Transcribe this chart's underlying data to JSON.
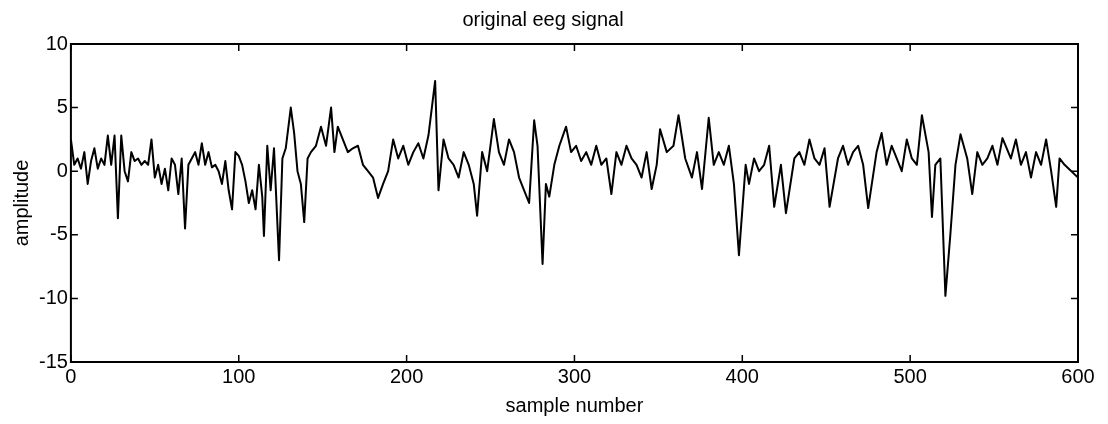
{
  "chart_data": {
    "type": "line",
    "title": "original eeg signal",
    "xlabel": "sample number",
    "ylabel": "amplitude",
    "xlim": [
      0,
      600
    ],
    "xticks": [
      0,
      100,
      200,
      300,
      400,
      500,
      600
    ],
    "ylim": [
      -15,
      10
    ],
    "yticks": [
      -15,
      -10,
      -5,
      0,
      5,
      10
    ],
    "grid": false,
    "legend": false,
    "marker": "none",
    "line_style": "solid",
    "series": [
      {
        "color": "#000000",
        "x": [
          0,
          2,
          4,
          6,
          8,
          10,
          12,
          14,
          16,
          18,
          20,
          22,
          24,
          26,
          28,
          30,
          32,
          34,
          36,
          38,
          40,
          42,
          44,
          46,
          48,
          50,
          52,
          54,
          56,
          58,
          60,
          62,
          64,
          66,
          68,
          70,
          72,
          74,
          76,
          78,
          80,
          82,
          84,
          86,
          88,
          90,
          92,
          94,
          96,
          98,
          100,
          102,
          104,
          106,
          108,
          110,
          112,
          114,
          115,
          117,
          119,
          121,
          124,
          126,
          128,
          131,
          133,
          135,
          137,
          139,
          141,
          143,
          146,
          149,
          152,
          155,
          157,
          159,
          162,
          165,
          168,
          171,
          174,
          177,
          180,
          183,
          186,
          189,
          192,
          195,
          198,
          201,
          204,
          207,
          210,
          213,
          217,
          219,
          222,
          225,
          228,
          231,
          234,
          237,
          240,
          242,
          245,
          248,
          252,
          255,
          258,
          261,
          264,
          267,
          270,
          273,
          276,
          278,
          281,
          283,
          285,
          288,
          291,
          295,
          298,
          301,
          304,
          307,
          310,
          313,
          316,
          319,
          322,
          325,
          328,
          331,
          334,
          337,
          340,
          343,
          346,
          349,
          351,
          355,
          359,
          362,
          366,
          370,
          373,
          376,
          380,
          383,
          386,
          389,
          392,
          395,
          398,
          402,
          404,
          407,
          410,
          413,
          416,
          419,
          423,
          426,
          431,
          434,
          437,
          440,
          443,
          446,
          449,
          452,
          457,
          460,
          463,
          466,
          469,
          472,
          475,
          480,
          483,
          486,
          489,
          492,
          495,
          498,
          501,
          504,
          507,
          511,
          513,
          515,
          518,
          521,
          524,
          527,
          530,
          534,
          537,
          540,
          543,
          546,
          549,
          552,
          555,
          560,
          563,
          566,
          569,
          572,
          575,
          578,
          581,
          584,
          587,
          589,
          592,
          600
        ],
        "values": [
          2.5,
          0.5,
          1.0,
          0.2,
          1.5,
          -1.0,
          0.8,
          1.8,
          0.2,
          1.0,
          0.5,
          2.8,
          0.5,
          2.8,
          -3.7,
          2.8,
          0.0,
          -0.8,
          1.5,
          0.8,
          1.0,
          0.5,
          0.8,
          0.5,
          2.5,
          -0.5,
          0.5,
          -1.0,
          0.2,
          -1.5,
          1.0,
          0.5,
          -1.8,
          1.0,
          -4.5,
          0.5,
          1.0,
          1.5,
          0.5,
          2.2,
          0.5,
          1.5,
          0.3,
          0.5,
          0.0,
          -1.0,
          0.8,
          -1.5,
          -3.0,
          1.5,
          1.2,
          0.5,
          -0.8,
          -2.5,
          -1.5,
          -3.0,
          0.5,
          -2.0,
          -5.1,
          2.0,
          -1.5,
          1.8,
          -7.0,
          1.0,
          1.8,
          5.0,
          3.0,
          0.0,
          -1.0,
          -4.0,
          1.0,
          1.5,
          2.0,
          3.5,
          2.0,
          5.0,
          1.5,
          3.5,
          2.5,
          1.5,
          1.8,
          2.0,
          0.5,
          0.0,
          -0.5,
          -2.1,
          -1.0,
          0.0,
          2.5,
          1.0,
          2.0,
          0.5,
          1.5,
          2.2,
          1.0,
          2.8,
          7.1,
          -1.5,
          2.5,
          1.0,
          0.5,
          -0.5,
          1.5,
          0.5,
          -1.0,
          -3.5,
          1.5,
          0.0,
          4.1,
          1.5,
          0.5,
          2.5,
          1.5,
          -0.5,
          -1.5,
          -2.5,
          4.0,
          2.0,
          -7.3,
          -1.0,
          -2.0,
          0.5,
          2.0,
          3.5,
          1.5,
          2.0,
          0.8,
          1.5,
          0.5,
          2.0,
          0.5,
          1.0,
          -1.8,
          1.5,
          0.5,
          2.0,
          1.0,
          0.5,
          -0.5,
          1.5,
          -1.4,
          0.5,
          3.3,
          1.5,
          2.0,
          4.4,
          1.0,
          -0.5,
          1.5,
          -1.4,
          4.2,
          0.5,
          1.5,
          0.5,
          2.0,
          -1.0,
          -6.6,
          0.5,
          -1.0,
          1.0,
          0.0,
          0.5,
          2.0,
          -2.8,
          0.5,
          -3.3,
          1.0,
          1.5,
          0.5,
          2.5,
          1.0,
          0.5,
          1.8,
          -2.8,
          1.0,
          2.0,
          0.5,
          1.5,
          2.0,
          0.5,
          -2.9,
          1.5,
          3.0,
          0.5,
          2.0,
          1.0,
          0.0,
          2.5,
          1.0,
          0.5,
          4.4,
          1.5,
          -3.6,
          0.5,
          1.0,
          -9.8,
          -4.9,
          0.5,
          2.9,
          1.0,
          -1.8,
          1.5,
          0.5,
          1.0,
          2.0,
          0.5,
          2.6,
          1.0,
          2.5,
          0.5,
          1.5,
          -0.5,
          1.5,
          0.5,
          2.5,
          0.0,
          -2.8,
          1.0,
          0.5,
          -0.5
        ]
      }
    ]
  }
}
